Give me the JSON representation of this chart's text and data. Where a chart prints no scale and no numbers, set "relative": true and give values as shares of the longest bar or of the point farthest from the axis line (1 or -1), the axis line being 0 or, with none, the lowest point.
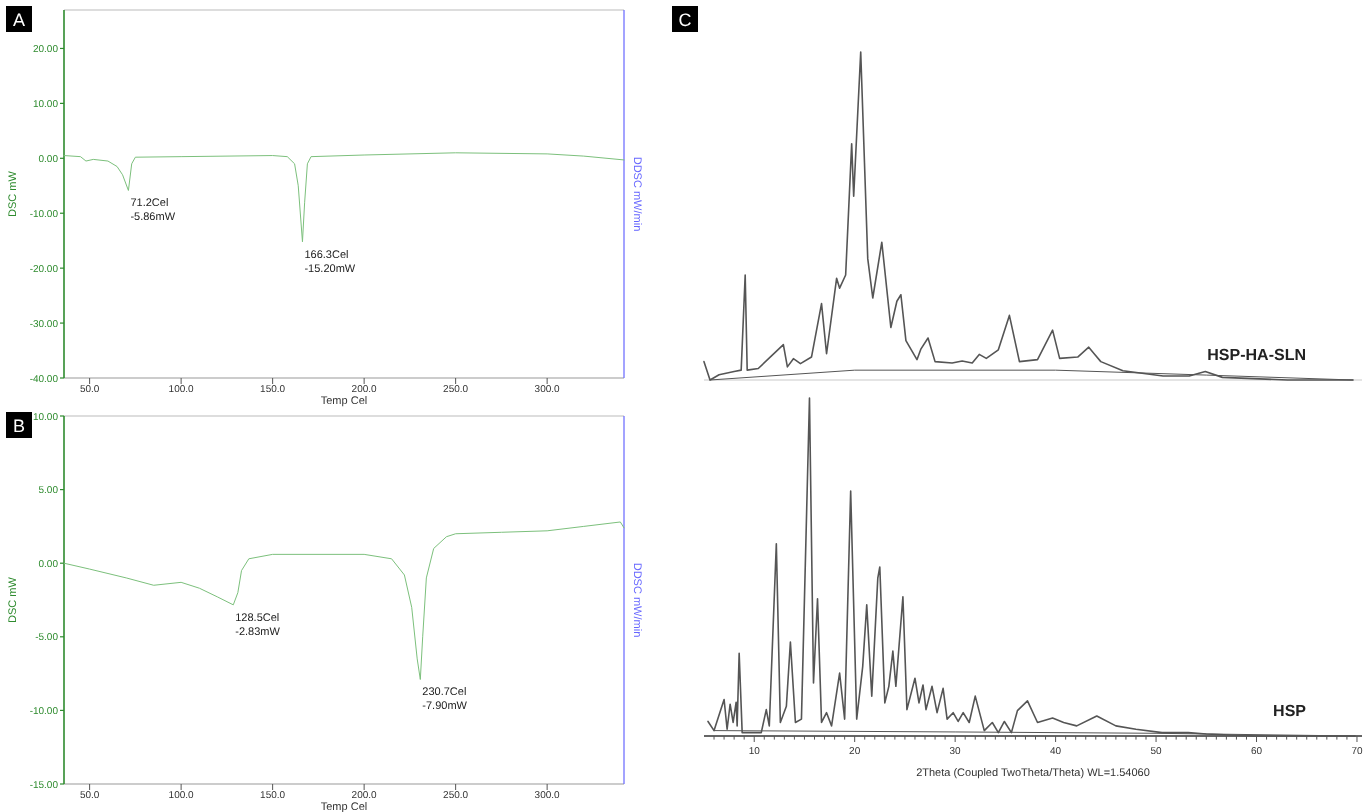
{
  "chart_data": [
    {
      "type": "line",
      "xlabel": "Temp Cel",
      "ylabel": "DSC mW",
      "y2label": "DDSC mW/min",
      "xlim": [
        36,
        342
      ],
      "ylim": [
        -40,
        27
      ],
      "xticks": [
        {
          "value": 50,
          "label": "50.0"
        },
        {
          "value": 100,
          "label": "100.0"
        },
        {
          "value": 150,
          "label": "150.0"
        },
        {
          "value": 200,
          "label": "200.0"
        },
        {
          "value": 250,
          "label": "250.0"
        },
        {
          "value": 300,
          "label": "300.0"
        }
      ],
      "yticks": [
        {
          "value": 20,
          "label": "20.00"
        },
        {
          "value": 10,
          "label": "10.00"
        },
        {
          "value": 0,
          "label": "0.00"
        },
        {
          "value": -10,
          "label": "-10.00"
        },
        {
          "value": -20,
          "label": "-20.00"
        },
        {
          "value": -30,
          "label": "-30.00"
        },
        {
          "value": -40,
          "label": "-40.00"
        }
      ],
      "series": [
        {
          "color": "#7cc07c",
          "x": [
            36,
            45,
            48,
            52,
            60,
            65,
            68,
            71.2,
            73,
            75,
            100,
            150,
            158,
            162,
            164,
            166.3,
            167.5,
            169,
            171,
            200,
            250,
            300,
            320,
            342
          ],
          "values": [
            0.5,
            0.3,
            -0.5,
            -0.2,
            -0.5,
            -1.5,
            -3,
            -5.86,
            -1,
            0.2,
            0.3,
            0.5,
            0.3,
            -1,
            -5,
            -15.2,
            -8,
            -1,
            0.3,
            0.6,
            1.0,
            0.8,
            0.4,
            -0.3
          ]
        }
      ],
      "annotations": [
        "A",
        {
          "text": "71.2Cel\n-5.86mW",
          "x": 71.2,
          "y": -5.86
        },
        {
          "text": "166.3Cel\n-15.20mW",
          "x": 166.3,
          "y": -15.2
        }
      ]
    },
    {
      "type": "line",
      "xlabel": "Temp Cel",
      "ylabel": "DSC mW",
      "y2label": "DDSC mW/min",
      "xlim": [
        36,
        342
      ],
      "ylim": [
        -15,
        10
      ],
      "xticks": [
        {
          "value": 50,
          "label": "50.0"
        },
        {
          "value": 100,
          "label": "100.0"
        },
        {
          "value": 150,
          "label": "150.0"
        },
        {
          "value": 200,
          "label": "200.0"
        },
        {
          "value": 250,
          "label": "250.0"
        },
        {
          "value": 300,
          "label": "300.0"
        }
      ],
      "yticks": [
        {
          "value": 10,
          "label": "10.00"
        },
        {
          "value": 5,
          "label": "5.00"
        },
        {
          "value": 0,
          "label": "0.00"
        },
        {
          "value": -5,
          "label": "-5.00"
        },
        {
          "value": -10,
          "label": "-10.00"
        },
        {
          "value": -15,
          "label": "-15.00"
        }
      ],
      "series": [
        {
          "color": "#7cc07c",
          "x": [
            36,
            50,
            70,
            85,
            100,
            110,
            120,
            128.5,
            131,
            133,
            137,
            150,
            200,
            215,
            222,
            226,
            229,
            230.7,
            232,
            234,
            238,
            245,
            250,
            275,
            300,
            320,
            340,
            342
          ],
          "values": [
            0,
            -0.4,
            -1,
            -1.5,
            -1.3,
            -1.7,
            -2.3,
            -2.83,
            -2,
            -0.5,
            0.3,
            0.6,
            0.6,
            0.3,
            -0.8,
            -3,
            -6.5,
            -7.9,
            -5,
            -1,
            1,
            1.8,
            2.0,
            2.1,
            2.2,
            2.5,
            2.8,
            2.4
          ]
        }
      ],
      "annotations": [
        "B",
        {
          "text": "128.5Cel\n-2.83mW",
          "x": 128.5,
          "y": -2.83
        },
        {
          "text": "230.7Cel\n-7.90mW",
          "x": 230.7,
          "y": -7.9
        }
      ]
    },
    {
      "type": "line",
      "relative": true,
      "tick_labels": false,
      "xlim": [
        5,
        70.5
      ],
      "series": [
        {
          "name": "HSP-HA-SLN",
          "color": "#555555",
          "x": [
            5.0,
            5.6,
            6.5,
            8.0,
            8.7,
            9.1,
            9.3,
            10.4,
            12.9,
            13.3,
            13.9,
            14.6,
            15.7,
            16.7,
            17.2,
            18.2,
            18.5,
            19.1,
            19.7,
            19.9,
            20.6,
            21.3,
            21.8,
            22.7,
            23.6,
            24.2,
            24.6,
            25.1,
            26.2,
            26.6,
            27.3,
            28.0,
            29.7,
            30.7,
            31.7,
            32.4,
            33.1,
            34.3,
            35.4,
            36.4,
            38.2,
            39.7,
            40.4,
            42.2,
            43.3,
            43.9,
            44.5,
            46.7,
            50.7,
            53.3,
            54.9,
            56.6,
            63.1,
            69.6
          ],
          "values": [
            0.056,
            0,
            0.016,
            0.026,
            0.03,
            0.32,
            0.03,
            0.035,
            0.108,
            0.04,
            0.065,
            0.05,
            0.07,
            0.233,
            0.08,
            0.31,
            0.28,
            0.32,
            0.72,
            0.56,
            1,
            0.37,
            0.25,
            0.42,
            0.16,
            0.24,
            0.26,
            0.12,
            0.062,
            0.095,
            0.128,
            0.056,
            0.052,
            0.058,
            0.052,
            0.078,
            0.066,
            0.092,
            0.197,
            0.056,
            0.062,
            0.152,
            0.066,
            0.07,
            0.1,
            0.078,
            0.056,
            0.028,
            0.012,
            0.012,
            0.026,
            0.008,
            0,
            0
          ]
        },
        {
          "color": "#555555",
          "x": [
            5.6,
            20,
            40,
            55,
            69.6
          ],
          "values": [
            0,
            0.03,
            0.03,
            0.015,
            0
          ]
        }
      ],
      "annotations": [
        "C"
      ]
    },
    {
      "type": "line",
      "relative": true,
      "xlabel": "2Theta (Coupled TwoTheta/Theta) WL=1.54060",
      "xlim": [
        5,
        70.5
      ],
      "xticks": [
        {
          "value": 6,
          "label": null
        },
        {
          "value": 7,
          "label": null
        },
        {
          "value": 8,
          "label": null
        },
        {
          "value": 9,
          "label": null
        },
        10,
        {
          "value": 11,
          "label": null
        },
        {
          "value": 12,
          "label": null
        },
        {
          "value": 13,
          "label": null
        },
        {
          "value": 14,
          "label": null
        },
        {
          "value": 15,
          "label": null
        },
        {
          "value": 16,
          "label": null
        },
        {
          "value": 17,
          "label": null
        },
        {
          "value": 18,
          "label": null
        },
        {
          "value": 19,
          "label": null
        },
        20,
        {
          "value": 21,
          "label": null
        },
        {
          "value": 22,
          "label": null
        },
        {
          "value": 23,
          "label": null
        },
        {
          "value": 24,
          "label": null
        },
        {
          "value": 25,
          "label": null
        },
        {
          "value": 26,
          "label": null
        },
        {
          "value": 27,
          "label": null
        },
        {
          "value": 28,
          "label": null
        },
        {
          "value": 29,
          "label": null
        },
        30,
        {
          "value": 31,
          "label": null
        },
        {
          "value": 32,
          "label": null
        },
        {
          "value": 33,
          "label": null
        },
        {
          "value": 34,
          "label": null
        },
        {
          "value": 35,
          "label": null
        },
        {
          "value": 36,
          "label": null
        },
        {
          "value": 37,
          "label": null
        },
        {
          "value": 38,
          "label": null
        },
        {
          "value": 39,
          "label": null
        },
        40,
        {
          "value": 41,
          "label": null
        },
        {
          "value": 42,
          "label": null
        },
        {
          "value": 43,
          "label": null
        },
        {
          "value": 44,
          "label": null
        },
        {
          "value": 45,
          "label": null
        },
        {
          "value": 46,
          "label": null
        },
        {
          "value": 47,
          "label": null
        },
        {
          "value": 48,
          "label": null
        },
        {
          "value": 49,
          "label": null
        },
        50,
        {
          "value": 51,
          "label": null
        },
        {
          "value": 52,
          "label": null
        },
        {
          "value": 53,
          "label": null
        },
        {
          "value": 54,
          "label": null
        },
        {
          "value": 55,
          "label": null
        },
        {
          "value": 56,
          "label": null
        },
        {
          "value": 57,
          "label": null
        },
        {
          "value": 58,
          "label": null
        },
        {
          "value": 59,
          "label": null
        },
        60,
        {
          "value": 61,
          "label": null
        },
        {
          "value": 62,
          "label": null
        },
        {
          "value": 63,
          "label": null
        },
        {
          "value": 64,
          "label": null
        },
        {
          "value": 65,
          "label": null
        },
        {
          "value": 66,
          "label": null
        },
        {
          "value": 67,
          "label": null
        },
        {
          "value": 68,
          "label": null
        },
        {
          "value": 69,
          "label": null
        },
        70
      ],
      "series": [
        {
          "name": "HSP",
          "color": "#555555",
          "x": [
            5.4,
            6.0,
            7.0,
            7.3,
            7.6,
            7.9,
            8.2,
            8.3,
            8.5,
            8.8,
            10.7,
            11.2,
            11.5,
            12.2,
            12.6,
            13.2,
            13.6,
            14.1,
            14.7,
            15.5,
            15.9,
            16.3,
            16.7,
            17.2,
            17.7,
            18.5,
            19.0,
            19.6,
            20.2,
            20.8,
            21.2,
            21.7,
            22.3,
            22.5,
            23.0,
            23.4,
            23.8,
            24.1,
            24.8,
            25.2,
            26.0,
            26.4,
            26.8,
            27.1,
            27.7,
            28.2,
            28.8,
            29.2,
            29.8,
            30.3,
            30.8,
            31.4,
            32.0,
            32.9,
            33.7,
            34.3,
            34.9,
            35.6,
            36.2,
            37.2,
            38.2,
            39.7,
            40.8,
            42.1,
            44.1,
            46.0,
            48.0,
            50.6,
            53.2,
            55.0,
            59.7,
            69.8
          ],
          "values": [
            0.043,
            0.016,
            0.108,
            0.02,
            0.094,
            0.04,
            0.1,
            0.03,
            0.245,
            0.01,
            0.01,
            0.078,
            0.03,
            0.569,
            0.04,
            0.088,
            0.278,
            0.04,
            0.05,
            1,
            0.157,
            0.406,
            0.04,
            0.069,
            0.03,
            0.186,
            0.05,
            0.725,
            0.05,
            0.206,
            0.388,
            0.118,
            0.467,
            0.5,
            0.098,
            0.147,
            0.251,
            0.147,
            0.412,
            0.078,
            0.171,
            0.098,
            0.151,
            0.078,
            0.147,
            0.069,
            0.141,
            0.05,
            0.069,
            0.043,
            0.069,
            0.04,
            0.118,
            0.016,
            0.04,
            0.01,
            0.043,
            0.01,
            0.075,
            0.104,
            0.04,
            0.053,
            0.04,
            0.03,
            0.059,
            0.03,
            0.02,
            0.01,
            0.01,
            0.006,
            0,
            0
          ]
        },
        {
          "color": "#555555",
          "x": [
            6.0,
            30,
            50,
            69.8
          ],
          "values": [
            0.016,
            0.012,
            0.008,
            0
          ]
        }
      ]
    }
  ]
}
